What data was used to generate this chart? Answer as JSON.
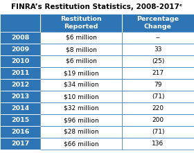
{
  "title": "FINRA’s Restitution Statistics, 2008-2017ᶜ",
  "col_headers": [
    "Restitution\nReported",
    "Percentage\nChange"
  ],
  "years": [
    "2008",
    "2009",
    "2010",
    "2011",
    "2012",
    "2013",
    "2014",
    "2015",
    "2016",
    "2017"
  ],
  "restitution": [
    "$6 million",
    "$8 million",
    "$6 million",
    "$19 million",
    "$34 million",
    "$10 million",
    "$32 million",
    "$96 million",
    "$28 million",
    "$66 million"
  ],
  "pct_change": [
    "--",
    "33",
    "(25)",
    "217",
    "79",
    "(71)",
    "220",
    "200",
    "(71)",
    "136"
  ],
  "header_bg": "#2E75B6",
  "header_text": "#FFFFFF",
  "year_bg": "#2E75B6",
  "year_text": "#FFFFFF",
  "row_bg": "#FFFFFF",
  "row_text": "#000000",
  "border_color": "#2E75B6",
  "title_fontsize": 7.5,
  "header_fontsize": 6.8,
  "cell_fontsize": 6.5,
  "year_fontsize": 6.8
}
